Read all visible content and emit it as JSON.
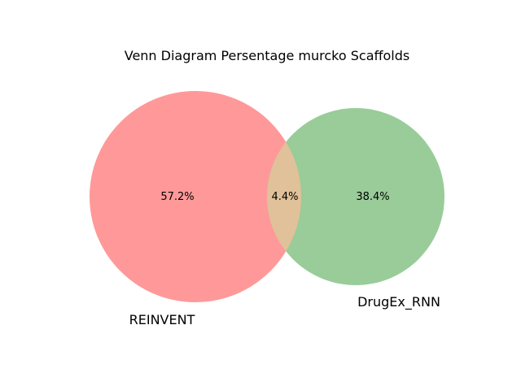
{
  "title": "Venn Diagram Persentage murcko Scaffolds",
  "sets": [
    {
      "name": "REINVENT",
      "color": "#ff9999"
    },
    {
      "name": "DrugEx_RNN",
      "color": "#99cc99"
    }
  ],
  "overlap_color": "#e1c199",
  "regions": {
    "left_only": "57.2%",
    "overlap": "4.4%",
    "right_only": "38.4%"
  }
}
